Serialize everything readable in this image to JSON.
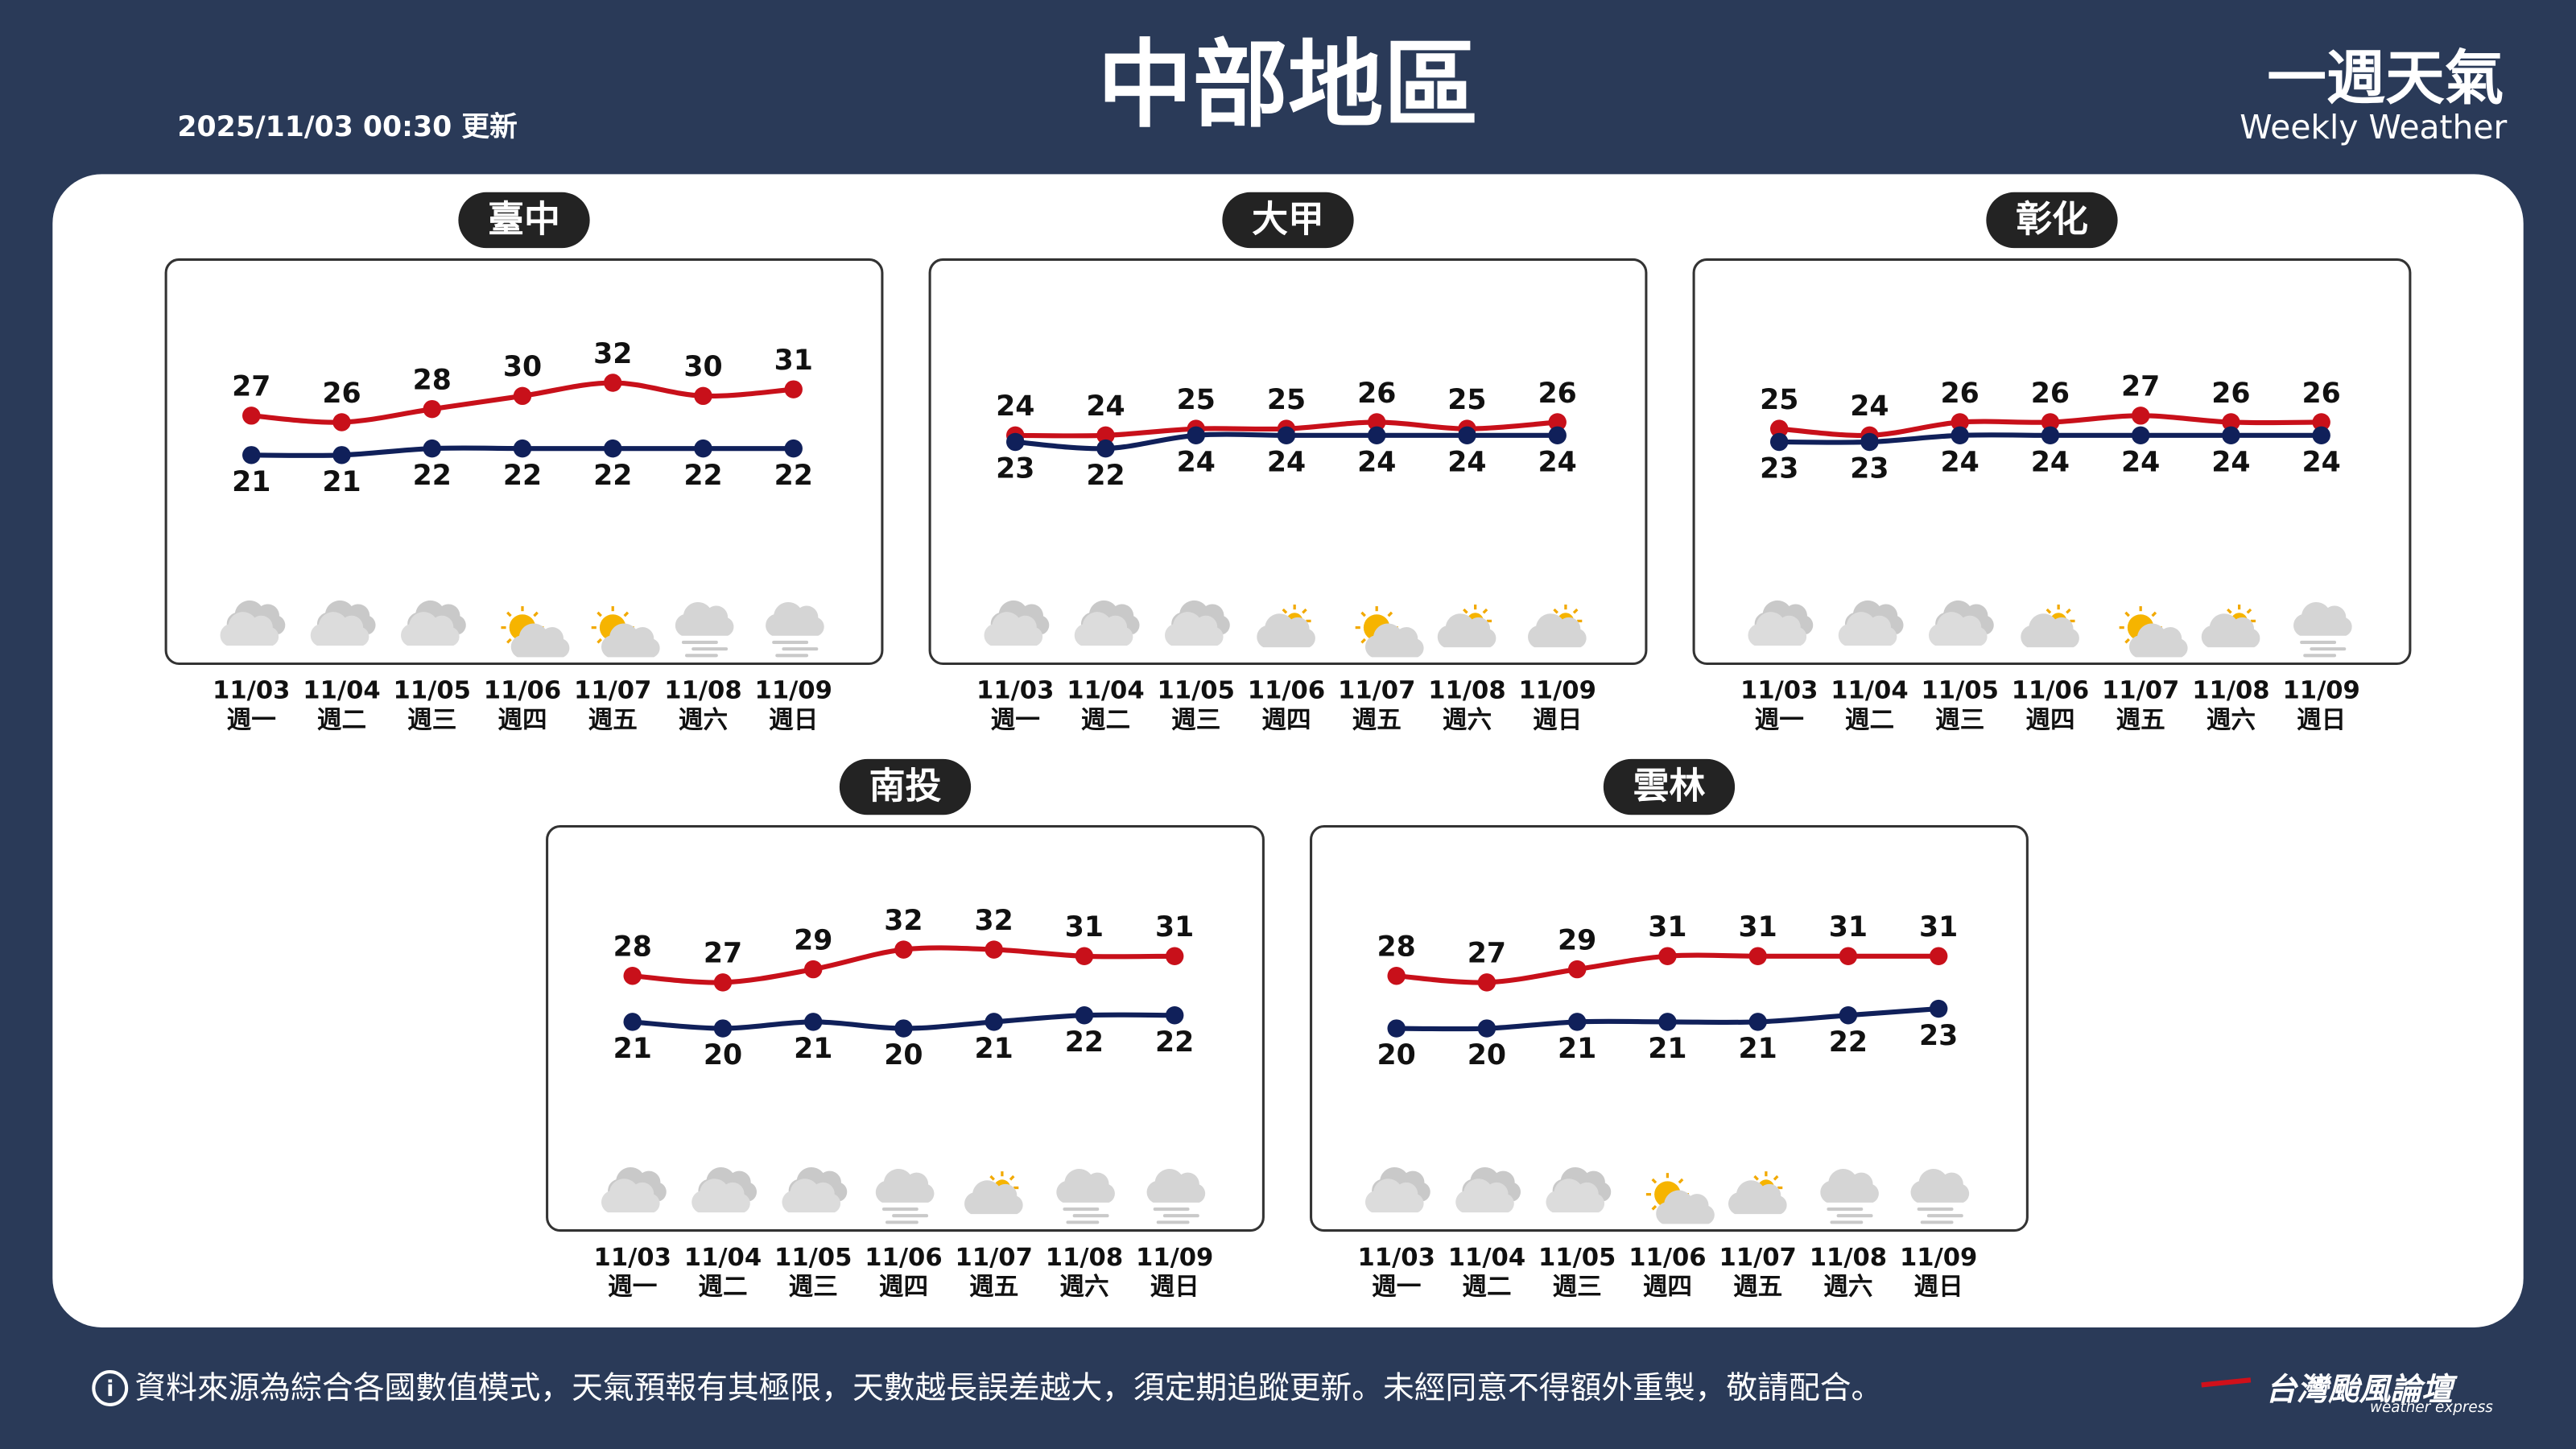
{
  "header": {
    "updated": "2025/11/03 00:30 更新",
    "title": "中部地區",
    "brand": "一週天氣",
    "brand_en": "Weekly Weather"
  },
  "footer": {
    "note": "資料來源為綜合各國數值模式，天氣預報有其極限，天數越長誤差越大，須定期追蹤更新。未經同意不得額外重製，敬請配合。",
    "logo": "台灣颱風論壇",
    "logo_en": "weather express"
  },
  "chart_data": [
    {
      "type": "line",
      "title": "臺中",
      "categories": [
        "11/03",
        "11/04",
        "11/05",
        "11/06",
        "11/07",
        "11/08",
        "11/09"
      ],
      "weekdays": [
        "週一",
        "週二",
        "週三",
        "週四",
        "週五",
        "週六",
        "週日"
      ],
      "ylim": [
        -10,
        50
      ],
      "icons": [
        "cloudy",
        "cloudy",
        "cloudy",
        "sunny",
        "sunny",
        "fog",
        "fog"
      ],
      "series": [
        {
          "color": "#c8101a",
          "values": [
            27,
            26,
            28,
            30,
            32,
            30,
            31
          ]
        },
        {
          "color": "#10205a",
          "values": [
            21,
            21,
            22,
            22,
            22,
            22,
            22
          ]
        }
      ]
    },
    {
      "type": "line",
      "title": "大甲",
      "categories": [
        "11/03",
        "11/04",
        "11/05",
        "11/06",
        "11/07",
        "11/08",
        "11/09"
      ],
      "weekdays": [
        "週一",
        "週二",
        "週三",
        "週四",
        "週五",
        "週六",
        "週日"
      ],
      "ylim": [
        -10,
        50
      ],
      "icons": [
        "cloudy",
        "cloudy",
        "cloudy",
        "partly",
        "sunny",
        "partly",
        "partly"
      ],
      "series": [
        {
          "color": "#c8101a",
          "values": [
            24,
            24,
            25,
            25,
            26,
            25,
            26
          ]
        },
        {
          "color": "#10205a",
          "values": [
            23,
            22,
            24,
            24,
            24,
            24,
            24
          ]
        }
      ]
    },
    {
      "type": "line",
      "title": "彰化",
      "categories": [
        "11/03",
        "11/04",
        "11/05",
        "11/06",
        "11/07",
        "11/08",
        "11/09"
      ],
      "weekdays": [
        "週一",
        "週二",
        "週三",
        "週四",
        "週五",
        "週六",
        "週日"
      ],
      "ylim": [
        -10,
        50
      ],
      "icons": [
        "cloudy",
        "cloudy",
        "cloudy",
        "partly",
        "sunny",
        "partly",
        "fog"
      ],
      "series": [
        {
          "color": "#c8101a",
          "values": [
            25,
            24,
            26,
            26,
            27,
            26,
            26
          ]
        },
        {
          "color": "#10205a",
          "values": [
            23,
            23,
            24,
            24,
            24,
            24,
            24
          ]
        }
      ]
    },
    {
      "type": "line",
      "title": "南投",
      "categories": [
        "11/03",
        "11/04",
        "11/05",
        "11/06",
        "11/07",
        "11/08",
        "11/09"
      ],
      "weekdays": [
        "週一",
        "週二",
        "週三",
        "週四",
        "週五",
        "週六",
        "週日"
      ],
      "ylim": [
        -10,
        50
      ],
      "icons": [
        "cloudy",
        "cloudy",
        "cloudy",
        "fog",
        "partly",
        "fog",
        "fog"
      ],
      "series": [
        {
          "color": "#c8101a",
          "values": [
            28,
            27,
            29,
            32,
            32,
            31,
            31
          ]
        },
        {
          "color": "#10205a",
          "values": [
            21,
            20,
            21,
            20,
            21,
            22,
            22
          ]
        }
      ]
    },
    {
      "type": "line",
      "title": "雲林",
      "categories": [
        "11/03",
        "11/04",
        "11/05",
        "11/06",
        "11/07",
        "11/08",
        "11/09"
      ],
      "weekdays": [
        "週一",
        "週二",
        "週三",
        "週四",
        "週五",
        "週六",
        "週日"
      ],
      "ylim": [
        -10,
        50
      ],
      "icons": [
        "cloudy",
        "cloudy",
        "cloudy",
        "sunny",
        "partly",
        "fog",
        "fog"
      ],
      "series": [
        {
          "color": "#c8101a",
          "values": [
            28,
            27,
            29,
            31,
            31,
            31,
            31
          ]
        },
        {
          "color": "#10205a",
          "values": [
            20,
            20,
            21,
            21,
            21,
            22,
            23
          ]
        }
      ]
    }
  ]
}
